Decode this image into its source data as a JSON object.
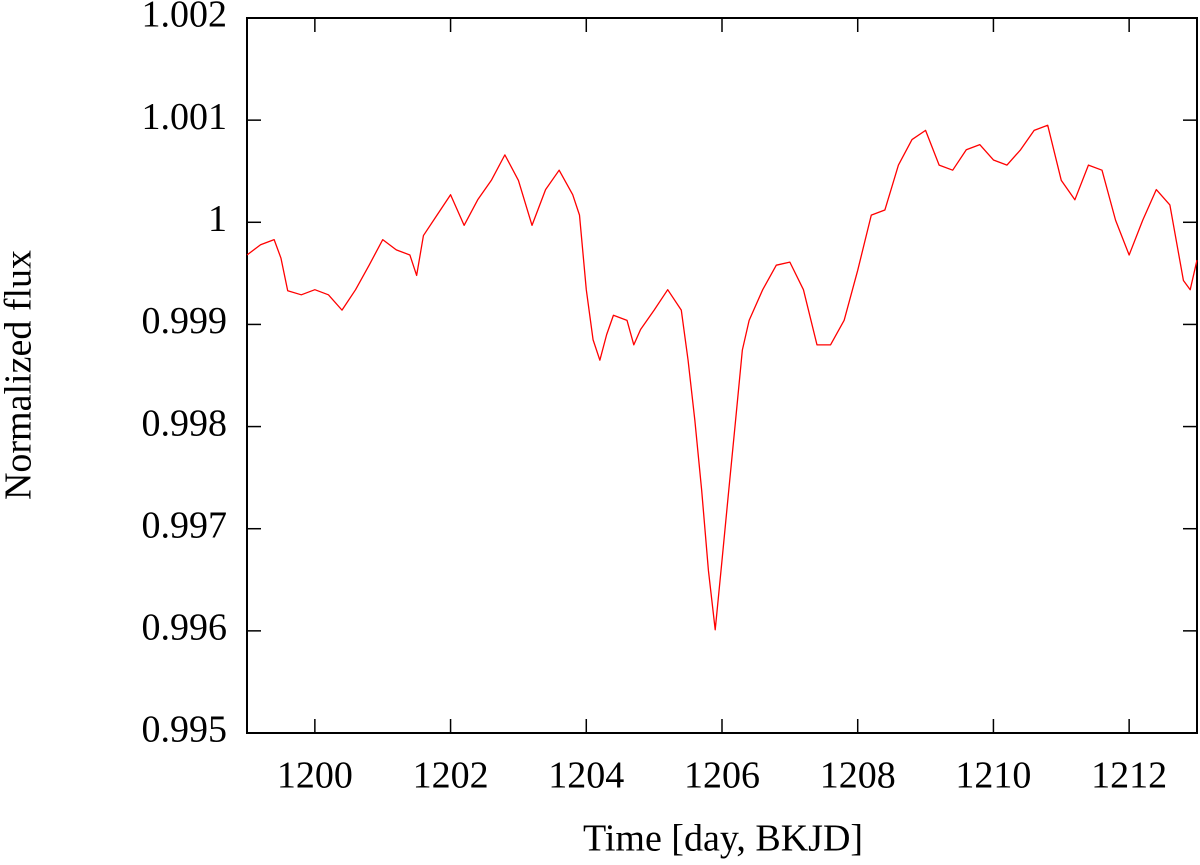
{
  "chart_data": {
    "type": "line",
    "xlabel": "Time [day, BKJD]",
    "ylabel": "Normalized flux",
    "xlim": [
      1199,
      1213
    ],
    "ylim": [
      0.995,
      1.002
    ],
    "xticks": [
      1200,
      1202,
      1204,
      1206,
      1208,
      1210,
      1212
    ],
    "yticks": [
      0.995,
      0.996,
      0.997,
      0.998,
      0.999,
      1,
      1.001,
      1.002
    ],
    "series": [
      {
        "color": "#ff0000",
        "x": [
          1199.0,
          1199.2,
          1199.4,
          1199.5,
          1199.6,
          1199.8,
          1200.0,
          1200.2,
          1200.4,
          1200.6,
          1200.8,
          1201.0,
          1201.2,
          1201.4,
          1201.5,
          1201.6,
          1201.8,
          1202.0,
          1202.2,
          1202.4,
          1202.6,
          1202.8,
          1203.0,
          1203.2,
          1203.4,
          1203.6,
          1203.8,
          1203.9,
          1204.0,
          1204.1,
          1204.2,
          1204.3,
          1204.4,
          1204.6,
          1204.7,
          1204.8,
          1205.0,
          1205.2,
          1205.4,
          1205.5,
          1205.6,
          1205.7,
          1205.8,
          1205.9,
          1206.0,
          1206.1,
          1206.2,
          1206.3,
          1206.4,
          1206.6,
          1206.8,
          1207.0,
          1207.2,
          1207.4,
          1207.6,
          1207.8,
          1208.0,
          1208.2,
          1208.4,
          1208.6,
          1208.8,
          1209.0,
          1209.2,
          1209.4,
          1209.6,
          1209.8,
          1210.0,
          1210.2,
          1210.4,
          1210.6,
          1210.8,
          1211.0,
          1211.2,
          1211.4,
          1211.6,
          1211.8,
          1212.0,
          1212.2,
          1212.4,
          1212.6,
          1212.8,
          1212.9,
          1213.0
        ],
        "values": [
          0.99968,
          0.99978,
          0.99983,
          0.99965,
          0.99933,
          0.99929,
          0.99934,
          0.99929,
          0.99914,
          0.99934,
          0.99958,
          0.99983,
          0.99973,
          0.99968,
          0.99948,
          0.99987,
          1.00007,
          1.00027,
          0.99997,
          1.00022,
          1.00041,
          1.00066,
          1.00041,
          0.99997,
          1.00032,
          1.00051,
          1.00027,
          1.00007,
          0.99934,
          0.99885,
          0.99865,
          0.9989,
          0.99909,
          0.99904,
          0.9988,
          0.99895,
          0.99914,
          0.99934,
          0.99914,
          0.99865,
          0.99806,
          0.99738,
          0.99659,
          0.99601,
          0.99669,
          0.99738,
          0.99806,
          0.99875,
          0.99904,
          0.99934,
          0.99958,
          0.99961,
          0.99934,
          0.9988,
          0.9988,
          0.99904,
          0.99953,
          1.00007,
          1.00012,
          1.00056,
          1.00081,
          1.0009,
          1.00056,
          1.00051,
          1.00071,
          1.00076,
          1.00061,
          1.00056,
          1.00071,
          1.0009,
          1.00095,
          1.00041,
          1.00022,
          1.00056,
          1.00051,
          1.00002,
          0.99968,
          1.00002,
          1.00032,
          1.00017,
          0.99943,
          0.99934,
          0.99963
        ]
      }
    ]
  }
}
